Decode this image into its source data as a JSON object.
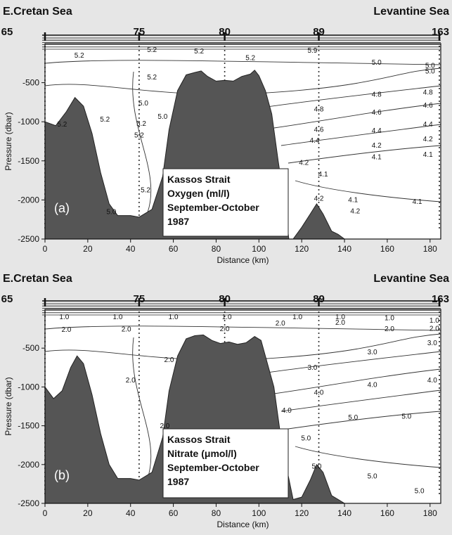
{
  "chart_data": [
    {
      "type": "contour",
      "panel_label": "(a)",
      "left_label": "E.Cretan Sea",
      "right_label": "Levantine Sea",
      "title_box": [
        "Kassos Strait",
        "Oxygen (ml/l)",
        "September-October",
        "1987"
      ],
      "xlabel": "Distance (km)",
      "ylabel": "Pressure (dbar)",
      "xlim": [
        0,
        185
      ],
      "ylim": [
        0,
        2500
      ],
      "xticks": [
        0,
        20,
        40,
        60,
        80,
        100,
        120,
        140,
        160,
        180
      ],
      "yticks": [
        -500,
        -1000,
        -1500,
        -2000,
        -2500
      ],
      "stations": [
        {
          "label": "65",
          "x": 0
        },
        {
          "label": "75",
          "x": 44
        },
        {
          "label": "80",
          "x": 84
        },
        {
          "label": "89",
          "x": 128
        },
        {
          "label": "163",
          "x": 185
        }
      ],
      "bathymetry": [
        [
          0,
          1000
        ],
        [
          5,
          1050
        ],
        [
          10,
          870
        ],
        [
          14,
          690
        ],
        [
          18,
          800
        ],
        [
          22,
          1150
        ],
        [
          26,
          1650
        ],
        [
          30,
          2050
        ],
        [
          34,
          2200
        ],
        [
          40,
          2200
        ],
        [
          44,
          2220
        ],
        [
          50,
          2120
        ],
        [
          55,
          1700
        ],
        [
          58,
          1100
        ],
        [
          62,
          600
        ],
        [
          66,
          400
        ],
        [
          70,
          370
        ],
        [
          73,
          350
        ],
        [
          76,
          420
        ],
        [
          80,
          480
        ],
        [
          84,
          470
        ],
        [
          88,
          480
        ],
        [
          92,
          420
        ],
        [
          96,
          390
        ],
        [
          98,
          340
        ],
        [
          100,
          410
        ],
        [
          103,
          600
        ],
        [
          106,
          900
        ],
        [
          109,
          1500
        ],
        [
          112,
          2050
        ],
        [
          114,
          2500
        ],
        [
          116,
          2500
        ],
        [
          120,
          2350
        ],
        [
          124,
          2180
        ],
        [
          127,
          2050
        ],
        [
          130,
          2180
        ],
        [
          134,
          2400
        ],
        [
          137,
          2440
        ],
        [
          140,
          2500
        ]
      ],
      "contour_labels": [
        {
          "text": "5.2",
          "x": 16,
          "y": 180
        },
        {
          "text": "5.2",
          "x": 50,
          "y": 110
        },
        {
          "text": "5.2",
          "x": 72,
          "y": 125
        },
        {
          "text": "5.2",
          "x": 96,
          "y": 210
        },
        {
          "text": "5.2",
          "x": 50,
          "y": 460
        },
        {
          "text": "5.2",
          "x": 44,
          "y": 1200
        },
        {
          "text": "5.2",
          "x": 28,
          "y": 1000
        },
        {
          "text": "5.2",
          "x": 45,
          "y": 1050
        },
        {
          "text": "5.2",
          "x": 47,
          "y": 1900
        },
        {
          "text": "5.2",
          "x": 8,
          "y": 1060
        },
        {
          "text": "5.0",
          "x": 46,
          "y": 790
        },
        {
          "text": "5.0",
          "x": 55,
          "y": 960
        },
        {
          "text": "5.0",
          "x": 155,
          "y": 270
        },
        {
          "text": "5.0",
          "x": 180,
          "y": 310
        },
        {
          "text": "5.0",
          "x": 180,
          "y": 380
        },
        {
          "text": "4.8",
          "x": 128,
          "y": 870
        },
        {
          "text": "4.8",
          "x": 155,
          "y": 680
        },
        {
          "text": "4.8",
          "x": 179,
          "y": 650
        },
        {
          "text": "4.6",
          "x": 128,
          "y": 1130
        },
        {
          "text": "4.6",
          "x": 155,
          "y": 910
        },
        {
          "text": "4.6",
          "x": 179,
          "y": 820
        },
        {
          "text": "4.4",
          "x": 126,
          "y": 1270
        },
        {
          "text": "4.4",
          "x": 155,
          "y": 1140
        },
        {
          "text": "4.4",
          "x": 179,
          "y": 1060
        },
        {
          "text": "4.2",
          "x": 121,
          "y": 1550
        },
        {
          "text": "4.2",
          "x": 155,
          "y": 1330
        },
        {
          "text": "4.2",
          "x": 179,
          "y": 1250
        },
        {
          "text": "4.1",
          "x": 130,
          "y": 1700
        },
        {
          "text": "4.1",
          "x": 155,
          "y": 1480
        },
        {
          "text": "4.1",
          "x": 179,
          "y": 1450
        },
        {
          "text": "4.1",
          "x": 144,
          "y": 2030
        },
        {
          "text": "4.1",
          "x": 174,
          "y": 2050
        },
        {
          "text": "4.2",
          "x": 128,
          "y": 2010
        },
        {
          "text": "4.2",
          "x": 145,
          "y": 2170
        },
        {
          "text": "5.9",
          "x": 125,
          "y": 115
        },
        {
          "text": "5.0",
          "x": 31,
          "y": 2180
        }
      ]
    },
    {
      "type": "contour",
      "panel_label": "(b)",
      "left_label": "E.Cretan Sea",
      "right_label": "Levantine Sea",
      "title_box": [
        "Kassos Strait",
        "Nitrate (μmol/l)",
        "September-October",
        "1987"
      ],
      "xlabel": "Distance (km)",
      "ylabel": "Pressure (dbar)",
      "xlim": [
        0,
        185
      ],
      "ylim": [
        0,
        2500
      ],
      "xticks": [
        0,
        20,
        40,
        60,
        80,
        100,
        120,
        140,
        160,
        180
      ],
      "yticks": [
        -500,
        -1000,
        -1500,
        -2000,
        -2500
      ],
      "stations": [
        {
          "label": "65",
          "x": 0
        },
        {
          "label": "75",
          "x": 44
        },
        {
          "label": "80",
          "x": 84
        },
        {
          "label": "89",
          "x": 128
        },
        {
          "label": "163",
          "x": 185
        }
      ],
      "bathymetry": [
        [
          0,
          1000
        ],
        [
          4,
          1150
        ],
        [
          8,
          1050
        ],
        [
          12,
          750
        ],
        [
          15,
          600
        ],
        [
          18,
          700
        ],
        [
          22,
          1100
        ],
        [
          26,
          1600
        ],
        [
          30,
          2000
        ],
        [
          34,
          2180
        ],
        [
          40,
          2180
        ],
        [
          44,
          2200
        ],
        [
          50,
          2100
        ],
        [
          55,
          1650
        ],
        [
          58,
          1050
        ],
        [
          62,
          600
        ],
        [
          66,
          380
        ],
        [
          70,
          340
        ],
        [
          74,
          330
        ],
        [
          78,
          400
        ],
        [
          82,
          440
        ],
        [
          86,
          420
        ],
        [
          90,
          450
        ],
        [
          94,
          430
        ],
        [
          98,
          350
        ],
        [
          101,
          400
        ],
        [
          104,
          700
        ],
        [
          107,
          1000
        ],
        [
          110,
          1600
        ],
        [
          113,
          2050
        ],
        [
          116,
          2450
        ],
        [
          120,
          2420
        ],
        [
          124,
          2200
        ],
        [
          127,
          2000
        ],
        [
          130,
          2100
        ],
        [
          134,
          2400
        ],
        [
          137,
          2450
        ],
        [
          140,
          2500
        ]
      ],
      "contour_labels": [
        {
          "text": "1.0",
          "x": 9,
          "y": 125
        },
        {
          "text": "1.0",
          "x": 34,
          "y": 125
        },
        {
          "text": "1.0",
          "x": 60,
          "y": 125
        },
        {
          "text": "1.0",
          "x": 85,
          "y": 125
        },
        {
          "text": "1.0",
          "x": 118,
          "y": 125
        },
        {
          "text": "1.0",
          "x": 138,
          "y": 125
        },
        {
          "text": "1.0",
          "x": 161,
          "y": 140
        },
        {
          "text": "1.0",
          "x": 182,
          "y": 170
        },
        {
          "text": "2.0",
          "x": 10,
          "y": 290
        },
        {
          "text": "2.0",
          "x": 38,
          "y": 285
        },
        {
          "text": "2.0",
          "x": 84,
          "y": 280
        },
        {
          "text": "2.0",
          "x": 110,
          "y": 210
        },
        {
          "text": "2.0",
          "x": 138,
          "y": 200
        },
        {
          "text": "2.0",
          "x": 161,
          "y": 280
        },
        {
          "text": "2.0",
          "x": 182,
          "y": 275
        },
        {
          "text": "2.0",
          "x": 58,
          "y": 680
        },
        {
          "text": "2.0",
          "x": 40,
          "y": 940
        },
        {
          "text": "2.0",
          "x": 56,
          "y": 1530
        },
        {
          "text": "3.0",
          "x": 125,
          "y": 780
        },
        {
          "text": "3.0",
          "x": 153,
          "y": 580
        },
        {
          "text": "3.0",
          "x": 181,
          "y": 460
        },
        {
          "text": "4.0",
          "x": 113,
          "y": 1330
        },
        {
          "text": "4.0",
          "x": 128,
          "y": 1100
        },
        {
          "text": "4.0",
          "x": 153,
          "y": 1000
        },
        {
          "text": "4.0",
          "x": 181,
          "y": 940
        },
        {
          "text": "5.0",
          "x": 122,
          "y": 1690
        },
        {
          "text": "5.0",
          "x": 144,
          "y": 1420
        },
        {
          "text": "5.0",
          "x": 169,
          "y": 1410
        },
        {
          "text": "5.0",
          "x": 127,
          "y": 2050
        },
        {
          "text": "5.0",
          "x": 153,
          "y": 2180
        },
        {
          "text": "5.0",
          "x": 175,
          "y": 2370
        }
      ]
    }
  ]
}
